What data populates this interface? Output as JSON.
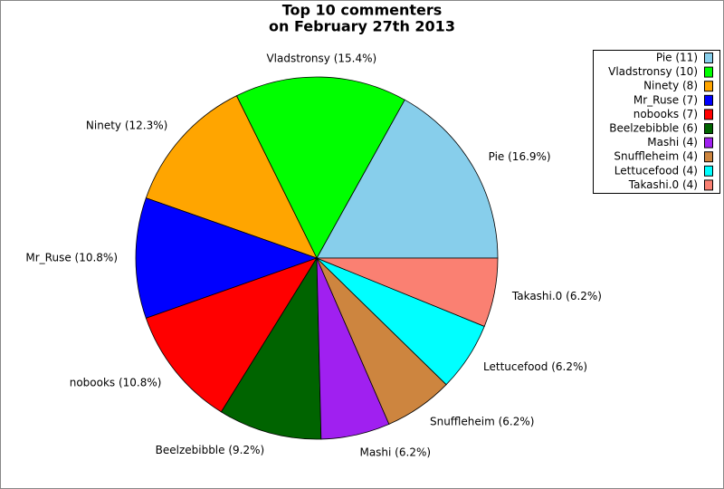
{
  "chart_data": {
    "type": "pie",
    "title": [
      "Top 10 commenters",
      "on February 27th 2013"
    ],
    "categories": [
      "Pie",
      "Vladstronsy",
      "Ninety",
      "Mr_Ruse",
      "nobooks",
      "Beelzebibble",
      "Mashi",
      "Snuffleheim",
      "Lettucefood",
      "Takashi.0"
    ],
    "values": [
      11,
      10,
      8,
      7,
      7,
      6,
      4,
      4,
      4,
      4
    ],
    "labels": [
      "Pie (16.9%)",
      "Vladstronsy (15.4%)",
      "Ninety (12.3%)",
      "Mr_Ruse (10.8%)",
      "nobooks (10.8%)",
      "Beelzebibble (9.2%)",
      "Mashi (6.2%)",
      "Snuffleheim (6.2%)",
      "Lettucefood (6.2%)",
      "Takashi.0 (6.2%)"
    ],
    "legend_labels": [
      "Pie (11)",
      "Vladstronsy (10)",
      "Ninety (8)",
      "Mr_Ruse (7)",
      "nobooks (7)",
      "Beelzebibble (6)",
      "Mashi (4)",
      "Snuffleheim (4)",
      "Lettucefood (4)",
      "Takashi.0 (4)"
    ],
    "colors": [
      "#87ceeb",
      "#00ff00",
      "#ffa500",
      "#0000ff",
      "#ff0000",
      "#006400",
      "#a020f0",
      "#cd853f",
      "#00ffff",
      "#fa8072"
    ],
    "legend": "upper right"
  }
}
